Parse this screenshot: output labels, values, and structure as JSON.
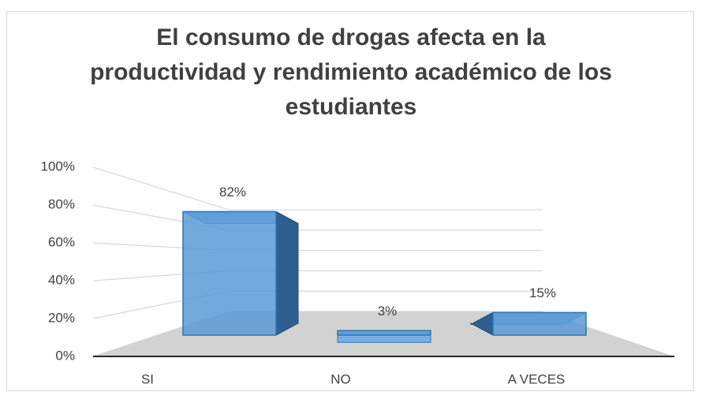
{
  "chart_data": {
    "type": "bar3d",
    "title": "El consumo de drogas afecta en la productividad y rendimiento académico de los estudiantes",
    "categories": [
      "SI",
      "NO",
      "A VECES"
    ],
    "values": [
      82,
      3,
      15
    ],
    "value_labels": [
      "82%",
      "3%",
      "15%"
    ],
    "color": "#5b9bd5",
    "ylim": [
      0,
      100
    ],
    "yticks": [
      {
        "value": 0,
        "label": "0%"
      },
      {
        "value": 20,
        "label": "20%"
      },
      {
        "value": 40,
        "label": "40%"
      },
      {
        "value": 60,
        "label": "60%"
      },
      {
        "value": 80,
        "label": "80%"
      },
      {
        "value": 100,
        "label": "100%"
      }
    ],
    "grid": true
  }
}
